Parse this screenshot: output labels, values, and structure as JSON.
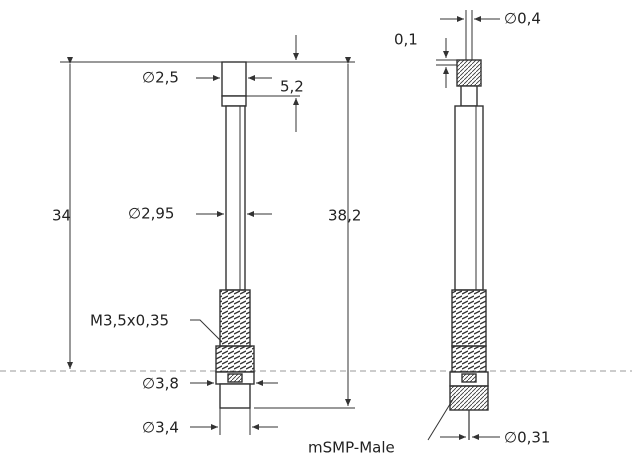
{
  "labels": {
    "left": {
      "cap_diameter": "∅2,5",
      "cap_height": "5,2",
      "height_short": "34",
      "height_total": "38,2",
      "shaft_diameter": "∅2,95",
      "thread": "M3,5x0,35",
      "connector_diameter": "∅3,8",
      "base_diameter": "∅3,4"
    },
    "right": {
      "tip_offset": "0,1",
      "tip_diameter": "∅0,4",
      "connector": "mSMP-Male",
      "pin_diameter": "∅0,31"
    }
  }
}
